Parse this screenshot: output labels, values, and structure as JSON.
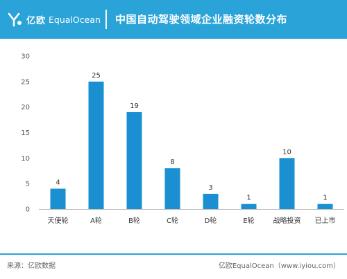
{
  "header": {
    "brand_cn": "亿欧",
    "brand_en": "EqualOcean",
    "title": "中国自动驾驶领域企业融资轮数分布"
  },
  "colors": {
    "accent": "#2aa3d8",
    "bar": "#1a8fd1"
  },
  "chart_data": {
    "type": "bar",
    "categories": [
      "天使轮",
      "A轮",
      "B轮",
      "C轮",
      "D轮",
      "E轮",
      "战略投资",
      "已上市"
    ],
    "values": [
      4,
      25,
      19,
      8,
      3,
      1,
      10,
      1
    ],
    "ylim": [
      0,
      30
    ],
    "yticks": [
      0,
      5,
      10,
      15,
      20,
      25,
      30
    ],
    "grid": false,
    "legend": "none"
  },
  "footer": {
    "source": "来源：亿欧数据",
    "site": "亿欧EqualOcean（www.iyiou.com）"
  }
}
